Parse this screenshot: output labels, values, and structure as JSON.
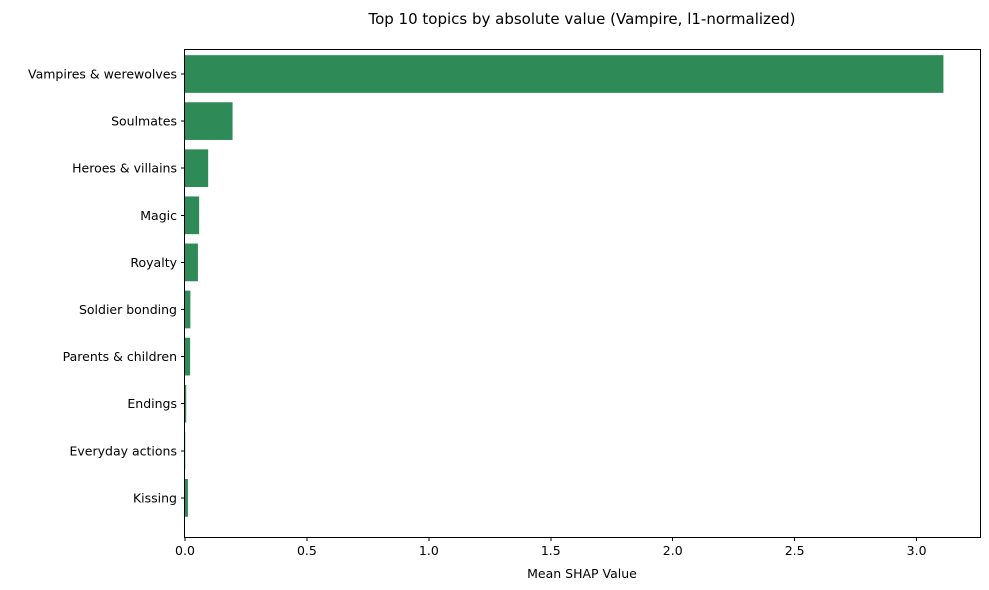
{
  "chart_data": {
    "type": "bar",
    "orientation": "horizontal",
    "title": "Top 10 topics by absolute value (Vampire, l1-normalized)",
    "xlabel": "Mean SHAP Value",
    "ylabel": "",
    "xlim": [
      0,
      3.26
    ],
    "xticks": [
      "0.0",
      "0.5",
      "1.0",
      "1.5",
      "2.0",
      "2.5",
      "3.0"
    ],
    "xtick_values": [
      0.0,
      0.5,
      1.0,
      1.5,
      2.0,
      2.5,
      3.0
    ],
    "categories": [
      "Vampires & werewolves",
      "Soulmates",
      "Heroes & villains",
      "Magic",
      "Royalty",
      "Soldier bonding",
      "Parents & children",
      "Endings",
      "Everyday actions",
      "Kissing"
    ],
    "values": [
      3.11,
      0.195,
      0.095,
      0.058,
      0.053,
      0.022,
      0.021,
      0.005,
      0.001,
      0.012
    ],
    "bar_color": "#2e8b57",
    "grid": false,
    "legend": "none"
  }
}
